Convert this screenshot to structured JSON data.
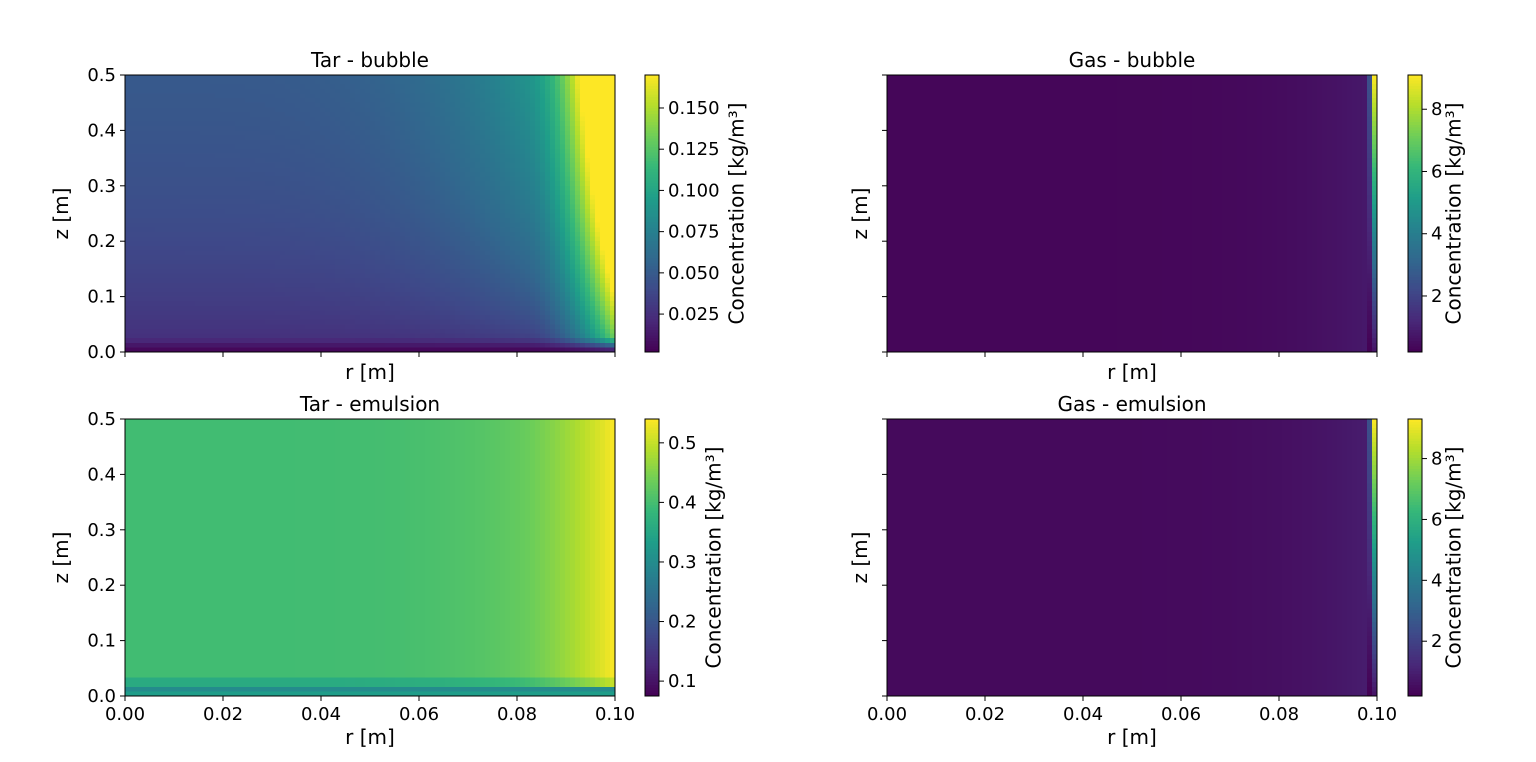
{
  "colors": {
    "viridis": [
      "#440154",
      "#482878",
      "#3e4989",
      "#31688e",
      "#26828e",
      "#1f9e89",
      "#35b779",
      "#6ece58",
      "#b5de2b",
      "#fde725"
    ]
  },
  "chart_data": [
    {
      "type": "heatmap",
      "title": "Tar - bubble",
      "xlabel": "r [m]",
      "ylabel": "z [m]",
      "xlim": [
        0,
        0.1
      ],
      "ylim": [
        0,
        0.5
      ],
      "x_ticks": [
        "0.00",
        "0.02",
        "0.04",
        "0.06",
        "0.08",
        "0.10"
      ],
      "x_tick_labels_shown": false,
      "y_ticks": [
        "0.0",
        "0.1",
        "0.2",
        "0.3",
        "0.4",
        "0.5"
      ],
      "y_tick_labels_shown": true,
      "colorbar": {
        "label": "Concentration [kg/m³]",
        "range": [
          0.002,
          0.17
        ],
        "ticks": [
          "0.025",
          "0.050",
          "0.075",
          "0.100",
          "0.125",
          "0.150"
        ]
      },
      "field": "tar_bubble"
    },
    {
      "type": "heatmap",
      "title": "Gas - bubble",
      "xlabel": "r [m]",
      "ylabel": "z [m]",
      "xlim": [
        0,
        0.1
      ],
      "ylim": [
        0,
        0.5
      ],
      "x_ticks": [
        "0.00",
        "0.02",
        "0.04",
        "0.06",
        "0.08",
        "0.10"
      ],
      "x_tick_labels_shown": false,
      "y_ticks": [
        "0.0",
        "0.1",
        "0.2",
        "0.3",
        "0.4",
        "0.5"
      ],
      "y_tick_labels_shown": false,
      "colorbar": {
        "label": "Concentration [kg/m³]",
        "range": [
          0.2,
          9.1
        ],
        "ticks": [
          "2",
          "4",
          "6",
          "8"
        ]
      },
      "field": "gas_bubble"
    },
    {
      "type": "heatmap",
      "title": "Tar - emulsion",
      "xlabel": "r [m]",
      "ylabel": "z [m]",
      "xlim": [
        0,
        0.1
      ],
      "ylim": [
        0,
        0.5
      ],
      "x_ticks": [
        "0.00",
        "0.02",
        "0.04",
        "0.06",
        "0.08",
        "0.10"
      ],
      "x_tick_labels_shown": true,
      "y_ticks": [
        "0.0",
        "0.1",
        "0.2",
        "0.3",
        "0.4",
        "0.5"
      ],
      "y_tick_labels_shown": true,
      "colorbar": {
        "label": "Concentration [kg/m³]",
        "range": [
          0.075,
          0.54
        ],
        "ticks": [
          "0.1",
          "0.2",
          "0.3",
          "0.4",
          "0.5"
        ]
      },
      "field": "tar_emulsion"
    },
    {
      "type": "heatmap",
      "title": "Gas - emulsion",
      "xlabel": "r [m]",
      "ylabel": "z [m]",
      "xlim": [
        0,
        0.1
      ],
      "ylim": [
        0,
        0.5
      ],
      "x_ticks": [
        "0.00",
        "0.02",
        "0.04",
        "0.06",
        "0.08",
        "0.10"
      ],
      "x_tick_labels_shown": true,
      "y_ticks": [
        "0.0",
        "0.1",
        "0.2",
        "0.3",
        "0.4",
        "0.5"
      ],
      "y_tick_labels_shown": false,
      "colorbar": {
        "label": "Concentration [kg/m³]",
        "range": [
          0.2,
          9.3
        ],
        "ticks": [
          "2",
          "4",
          "6",
          "8"
        ]
      },
      "field": "gas_emulsion"
    }
  ]
}
